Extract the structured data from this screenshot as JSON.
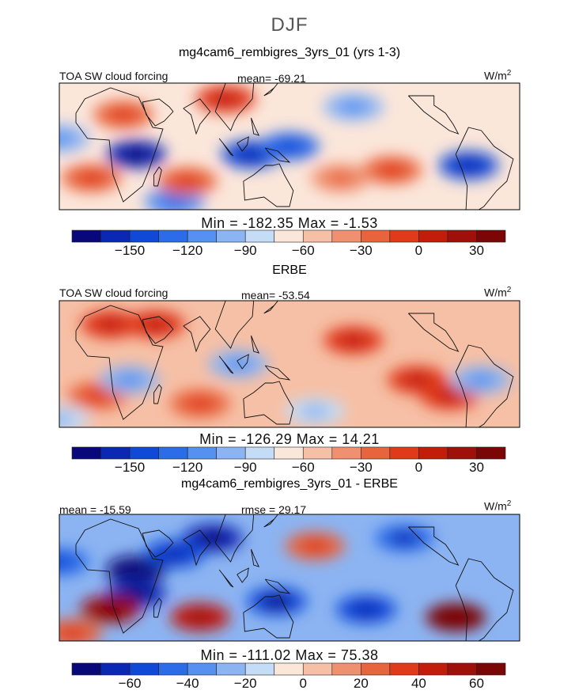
{
  "figure": {
    "season": "DJF",
    "units": "W/m",
    "units_sup": "2"
  },
  "panels": [
    {
      "title": "mg4cam6_rembigres_3yrs_01 (yrs 1-3)",
      "variable": "TOA SW cloud forcing",
      "mean_label": "mean= -69.21",
      "minmax_label": "Min = -182.35 Max = -1.53"
    },
    {
      "title": "ERBE",
      "variable": "TOA SW cloud forcing",
      "mean_label": "mean= -53.54",
      "minmax_label": "Min = -126.29 Max = 14.21"
    },
    {
      "title": "mg4cam6_rembigres_3yrs_01 - ERBE",
      "mean_label": "mean = -15.59",
      "rmse_label": "rmse = 29.17",
      "minmax_label": "Min = -111.02 Max = 75.38"
    }
  ],
  "colorbars": {
    "colors": [
      "#08087a",
      "#0a28b4",
      "#1048d8",
      "#2c6ce8",
      "#5690f0",
      "#8cb4f2",
      "#c4dcf6",
      "#fbe6da",
      "#f6c0a6",
      "#ef9070",
      "#e8643c",
      "#e03a1a",
      "#c21c0a",
      "#a0100a",
      "#7a0606"
    ],
    "ticks_main": [
      "-150",
      "-120",
      "-90",
      "-60",
      "-30",
      "0",
      "30"
    ],
    "ticks_diff": [
      "-60",
      "-40",
      "-20",
      "0",
      "20",
      "40",
      "60"
    ]
  },
  "chart_data": [
    {
      "type": "heatmap",
      "title": "mg4cam6_rembigres_3yrs_01 (yrs 1-3)",
      "subtitle": "TOA SW cloud forcing",
      "units": "W/m2",
      "mean": -69.21,
      "min": -182.35,
      "max": -1.53,
      "colorbar_ticks": [
        -150,
        -120,
        -90,
        -60,
        -30,
        0,
        30
      ],
      "colorbar_range": [
        -180,
        45
      ],
      "features": [
        {
          "name": "neg",
          "lon": 30,
          "lat": -5,
          "v": -155
        },
        {
          "name": "neg",
          "lon": 120,
          "lat": -5,
          "v": -140
        },
        {
          "name": "neg",
          "lon": 150,
          "lat": 0,
          "v": -130
        },
        {
          "name": "neg",
          "lon": -70,
          "lat": -12,
          "v": -145
        },
        {
          "name": "neg",
          "lon": -30,
          "lat": 5,
          "v": -105
        },
        {
          "name": "neg",
          "lon": 60,
          "lat": -35,
          "v": -115
        },
        {
          "name": "neg",
          "lon": -160,
          "lat": 25,
          "v": -100
        },
        {
          "name": "pos",
          "lon": 100,
          "lat": 30,
          "v": -8
        },
        {
          "name": "pos",
          "lon": 20,
          "lat": 20,
          "v": -20
        },
        {
          "name": "pos",
          "lon": -5,
          "lat": -20,
          "v": -20
        },
        {
          "name": "pos",
          "lon": 70,
          "lat": -22,
          "v": -25
        },
        {
          "name": "pos",
          "lon": -130,
          "lat": -15,
          "v": -25
        },
        {
          "name": "pos",
          "lon": -170,
          "lat": -20,
          "v": -35
        }
      ]
    },
    {
      "type": "heatmap",
      "title": "ERBE",
      "subtitle": "TOA SW cloud forcing",
      "units": "W/m2",
      "mean": -53.54,
      "min": -126.29,
      "max": 14.21,
      "colorbar_ticks": [
        -150,
        -120,
        -90,
        -60,
        -30,
        0,
        30
      ],
      "colorbar_range": [
        -180,
        45
      ],
      "features": [
        {
          "name": "pos",
          "lon": 10,
          "lat": 25,
          "v": -5
        },
        {
          "name": "pos",
          "lon": 45,
          "lat": 25,
          "v": -12
        },
        {
          "name": "pos",
          "lon": -160,
          "lat": 15,
          "v": -15
        },
        {
          "name": "pos",
          "lon": -110,
          "lat": -10,
          "v": -10
        },
        {
          "name": "pos",
          "lon": -85,
          "lat": -20,
          "v": -5
        },
        {
          "name": "pos",
          "lon": 0,
          "lat": -20,
          "v": -20
        },
        {
          "name": "pos",
          "lon": 80,
          "lat": -25,
          "v": -25
        },
        {
          "name": "neg",
          "lon": 110,
          "lat": 0,
          "v": -100
        },
        {
          "name": "neg",
          "lon": 25,
          "lat": -10,
          "v": -100
        },
        {
          "name": "neg",
          "lon": -60,
          "lat": -10,
          "v": -100
        },
        {
          "name": "neg",
          "lon": 170,
          "lat": -30,
          "v": -90
        },
        {
          "name": "neg",
          "lon": -30,
          "lat": -35,
          "v": -85
        }
      ]
    },
    {
      "type": "heatmap",
      "title": "mg4cam6_rembigres_3yrs_01 - ERBE",
      "units": "W/m2",
      "mean": -15.59,
      "rmse": 29.17,
      "min": -111.02,
      "max": 75.38,
      "colorbar_ticks": [
        -60,
        -40,
        -20,
        0,
        20,
        40,
        60
      ],
      "colorbar_range": [
        -75,
        75
      ],
      "features": [
        {
          "name": "neg",
          "lon": 30,
          "lat": 5,
          "v": -75
        },
        {
          "name": "neg",
          "lon": 30,
          "lat": -10,
          "v": -65
        },
        {
          "name": "neg",
          "lon": 90,
          "lat": 25,
          "v": -60
        },
        {
          "name": "neg",
          "lon": 140,
          "lat": -15,
          "v": -55
        },
        {
          "name": "neg",
          "lon": -150,
          "lat": -20,
          "v": -50
        },
        {
          "name": "neg",
          "lon": -120,
          "lat": 25,
          "v": -45
        },
        {
          "name": "neg",
          "lon": 60,
          "lat": 15,
          "v": -50
        },
        {
          "name": "neg",
          "lon": -30,
          "lat": 10,
          "v": -40
        },
        {
          "name": "pos",
          "lon": -80,
          "lat": -25,
          "v": 70
        },
        {
          "name": "pos",
          "lon": 10,
          "lat": -20,
          "v": 55
        },
        {
          "name": "pos",
          "lon": 80,
          "lat": -25,
          "v": 45
        },
        {
          "name": "pos",
          "lon": -20,
          "lat": -35,
          "v": 25
        },
        {
          "name": "pos",
          "lon": 170,
          "lat": 20,
          "v": 25
        }
      ]
    }
  ]
}
